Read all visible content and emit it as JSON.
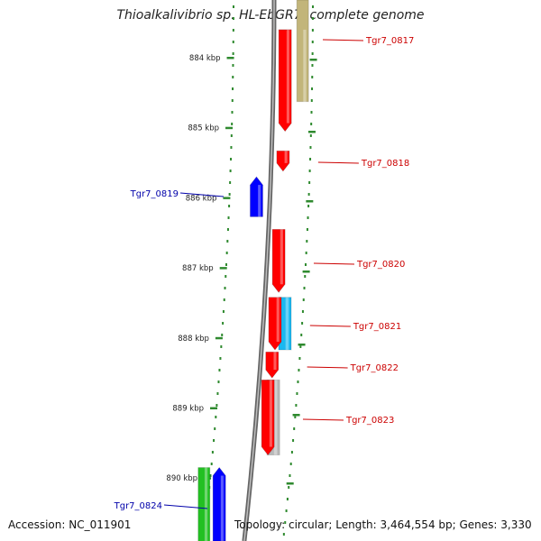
{
  "title": "Thioalkalivibrio sp. HL-EbGR7, complete genome",
  "footer": {
    "accession": "Accession: NC_011901",
    "summary": "Topology: circular; Length: 3,464,554 bp; Genes: 3,330"
  },
  "colors": {
    "forward_gene": "#ff0000",
    "reverse_gene": "#0000ff",
    "label_red": "#cc0000",
    "label_blue": "#0000aa",
    "tick_green": "#2f8a2f",
    "backbone": "#888888"
  },
  "kbp_ticks": [
    {
      "kbp": 884,
      "label": "884 kbp"
    },
    {
      "kbp": 885,
      "label": "885 kbp"
    },
    {
      "kbp": 886,
      "label": "886 kbp"
    },
    {
      "kbp": 887,
      "label": "887 kbp"
    },
    {
      "kbp": 888,
      "label": "888 kbp"
    },
    {
      "kbp": 889,
      "label": "889 kbp"
    },
    {
      "kbp": 890,
      "label": "890 kbp"
    }
  ],
  "genes": [
    {
      "label": "Tgr7_0817",
      "strand": "forward",
      "color": "#ff0000",
      "start_kbp": 883.6,
      "end_kbp": 885.05,
      "side": "right"
    },
    {
      "label": "Tgr7_0818",
      "strand": "forward",
      "color": "#ff0000",
      "start_kbp": 885.33,
      "end_kbp": 885.62,
      "side": "right"
    },
    {
      "label": "Tgr7_0819",
      "strand": "reverse",
      "color": "#0000ff",
      "start_kbp": 885.7,
      "end_kbp": 886.27,
      "side": "left"
    },
    {
      "label": "Tgr7_0820",
      "strand": "forward",
      "color": "#ff0000",
      "start_kbp": 886.45,
      "end_kbp": 887.35,
      "side": "right"
    },
    {
      "label": "Tgr7_0821",
      "strand": "forward",
      "color": "#ff0000",
      "start_kbp": 887.42,
      "end_kbp": 888.17,
      "side": "right"
    },
    {
      "label": "Tgr7_0822",
      "strand": "forward",
      "color": "#ff0000",
      "start_kbp": 888.2,
      "end_kbp": 888.57,
      "side": "right"
    },
    {
      "label": "Tgr7_0823",
      "strand": "forward",
      "color": "#ff0000",
      "start_kbp": 888.6,
      "end_kbp": 889.67,
      "side": "right"
    },
    {
      "label": "Tgr7_0824",
      "strand": "reverse",
      "color": "#0000ff",
      "start_kbp": 889.85,
      "end_kbp": 891.0,
      "side": "left"
    }
  ],
  "feature_bars": [
    {
      "color": "#c2b57a",
      "start_kbp": 883.6,
      "end_kbp": 885.05
    },
    {
      "color": "#1ab8f0",
      "start_kbp": 887.42,
      "end_kbp": 888.17
    },
    {
      "color": "#b8b8b8",
      "start_kbp": 888.6,
      "end_kbp": 889.67
    },
    {
      "color": "#22c022",
      "start_kbp": 889.85,
      "end_kbp": 891.0
    }
  ]
}
